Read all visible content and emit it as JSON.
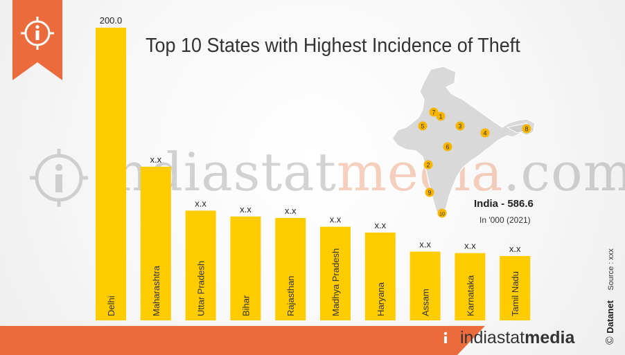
{
  "title": "Top 10 States with Highest Incidence of Theft",
  "india_total": "India - 586.6",
  "unit_note": "In '000 (2021)",
  "watermark": {
    "part1": "indiastat",
    "part2": "media",
    "part3": ".com"
  },
  "footer": {
    "logo_part1": "indiastat",
    "logo_part2": "media"
  },
  "side": {
    "brand": "Datanet",
    "source": "Source : xxx",
    "copyright": "©"
  },
  "colors": {
    "bar": "#ffcc00",
    "accent": "#ec6b3d",
    "map": "#d9d9d9",
    "marker": "#f7b500"
  },
  "map_markers": [
    "7",
    "1",
    "5",
    "3",
    "4",
    "8",
    "6",
    "2",
    "9",
    "10"
  ],
  "chart_data": {
    "type": "bar",
    "title": "Top 10 States with Highest Incidence of Theft",
    "categories": [
      "Delhi",
      "Maharashtra",
      "Uttar Pradesh",
      "Bihar",
      "Rajasthan",
      "Madhya Pradesh",
      "Haryana",
      "Assam",
      "Karnataka",
      "Tamil Nadu"
    ],
    "values": [
      200.0,
      105,
      75,
      71,
      70,
      64,
      60,
      47,
      46,
      44
    ],
    "data_labels": [
      "200.0",
      "x.x",
      "x.x",
      "x.x",
      "x.x",
      "x.x",
      "x.x",
      "x.x",
      "x.x",
      "x.x"
    ],
    "ylim": [
      0,
      200
    ],
    "grid": false,
    "xlabel": "",
    "ylabel": ""
  }
}
